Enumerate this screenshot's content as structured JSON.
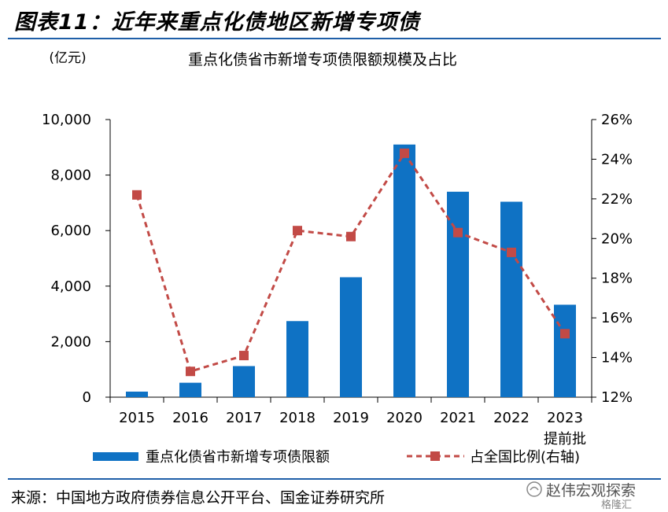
{
  "figure_title": "图表11：近年来重点化债地区新增专项债",
  "source_text": "来源：中国地方政府债券信息公开平台、国金证券研究所",
  "watermark": {
    "text": "赵伟宏观探索",
    "sub": "格隆汇"
  },
  "colors": {
    "bar": "#0f72c4",
    "line": "#c24a46",
    "rule": "#1f5fa8"
  },
  "chart_data": {
    "type": "bar",
    "title": "重点化债省市新增专项债限额规模及占比",
    "unit_label": "(亿元)",
    "categories": [
      "2015",
      "2016",
      "2017",
      "2018",
      "2019",
      "2020",
      "2021",
      "2022",
      "2023"
    ],
    "category_sub": [
      "",
      "",
      "",
      "",
      "",
      "",
      "",
      "",
      "提前批"
    ],
    "series": [
      {
        "name": "重点化债省市新增专项债限额",
        "kind": "bar",
        "axis": "left",
        "values": [
          200,
          520,
          1120,
          2740,
          4320,
          9100,
          7400,
          7040,
          3330
        ]
      },
      {
        "name": "占全国比例(右轴)",
        "kind": "line",
        "axis": "right",
        "line_style": "dashed",
        "marker": "square",
        "values": [
          22.2,
          13.3,
          14.1,
          20.4,
          20.1,
          24.3,
          20.3,
          19.3,
          15.2
        ]
      }
    ],
    "y_left": {
      "min": 0,
      "max": 10000,
      "ticks": [
        "0",
        "2,000",
        "4,000",
        "6,000",
        "8,000",
        "10,000"
      ]
    },
    "y_right": {
      "min": 12,
      "max": 26,
      "ticks": [
        "12%",
        "14%",
        "16%",
        "18%",
        "20%",
        "22%",
        "24%",
        "26%"
      ]
    },
    "grid": false,
    "legend_position": "bottom"
  }
}
